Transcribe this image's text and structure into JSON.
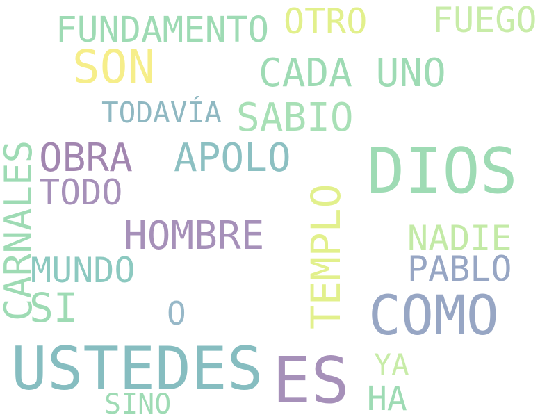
{
  "palette": {
    "green": "#9edbb4",
    "lime": "#b9e6a2",
    "yellow": "#f6ee8a",
    "paleyellow": "#e2f08c",
    "teal": "#86bdc0",
    "purple": "#a690b9",
    "slate": "#97a6c4"
  },
  "words": [
    {
      "text": "DIOS",
      "color": "#9edbb4"
    },
    {
      "text": "USTEDES",
      "color": "#86bdc0"
    },
    {
      "text": "ES",
      "color": "#a690b9"
    },
    {
      "text": "COMO",
      "color": "#97a6c4"
    },
    {
      "text": "SON",
      "color": "#f6ee8a"
    },
    {
      "text": "CADA UNO",
      "color": "#9edbb4"
    },
    {
      "text": "FUNDAMENTO",
      "color": "#9edbb4"
    },
    {
      "text": "OTRO",
      "color": "#e2f08c"
    },
    {
      "text": "FUEGO",
      "color": "#c8eca8"
    },
    {
      "text": "TODAVÍA",
      "color": "#8fb8c2"
    },
    {
      "text": "SABIO",
      "color": "#a8e0b6"
    },
    {
      "text": "OBRA",
      "color": "#a286b0"
    },
    {
      "text": "APOLO",
      "color": "#8cc0c2"
    },
    {
      "text": "TODO",
      "color": "#a690b9"
    },
    {
      "text": "CARNALES",
      "color": "#9edbb4"
    },
    {
      "text": "HOMBRE",
      "color": "#a690b9"
    },
    {
      "text": "TEMPLO",
      "color": "#e2f08c"
    },
    {
      "text": "NADIE",
      "color": "#c3eaa6"
    },
    {
      "text": "PABLO",
      "color": "#97a6c4"
    },
    {
      "text": "MUNDO",
      "color": "#8cc9c0"
    },
    {
      "text": "SI",
      "color": "#9edbb4"
    },
    {
      "text": "O",
      "color": "#97b8c8"
    },
    {
      "text": "YA",
      "color": "#c8eca8"
    },
    {
      "text": "HA",
      "color": "#9edbb4"
    },
    {
      "text": "SINO",
      "color": "#9edbb4"
    }
  ]
}
